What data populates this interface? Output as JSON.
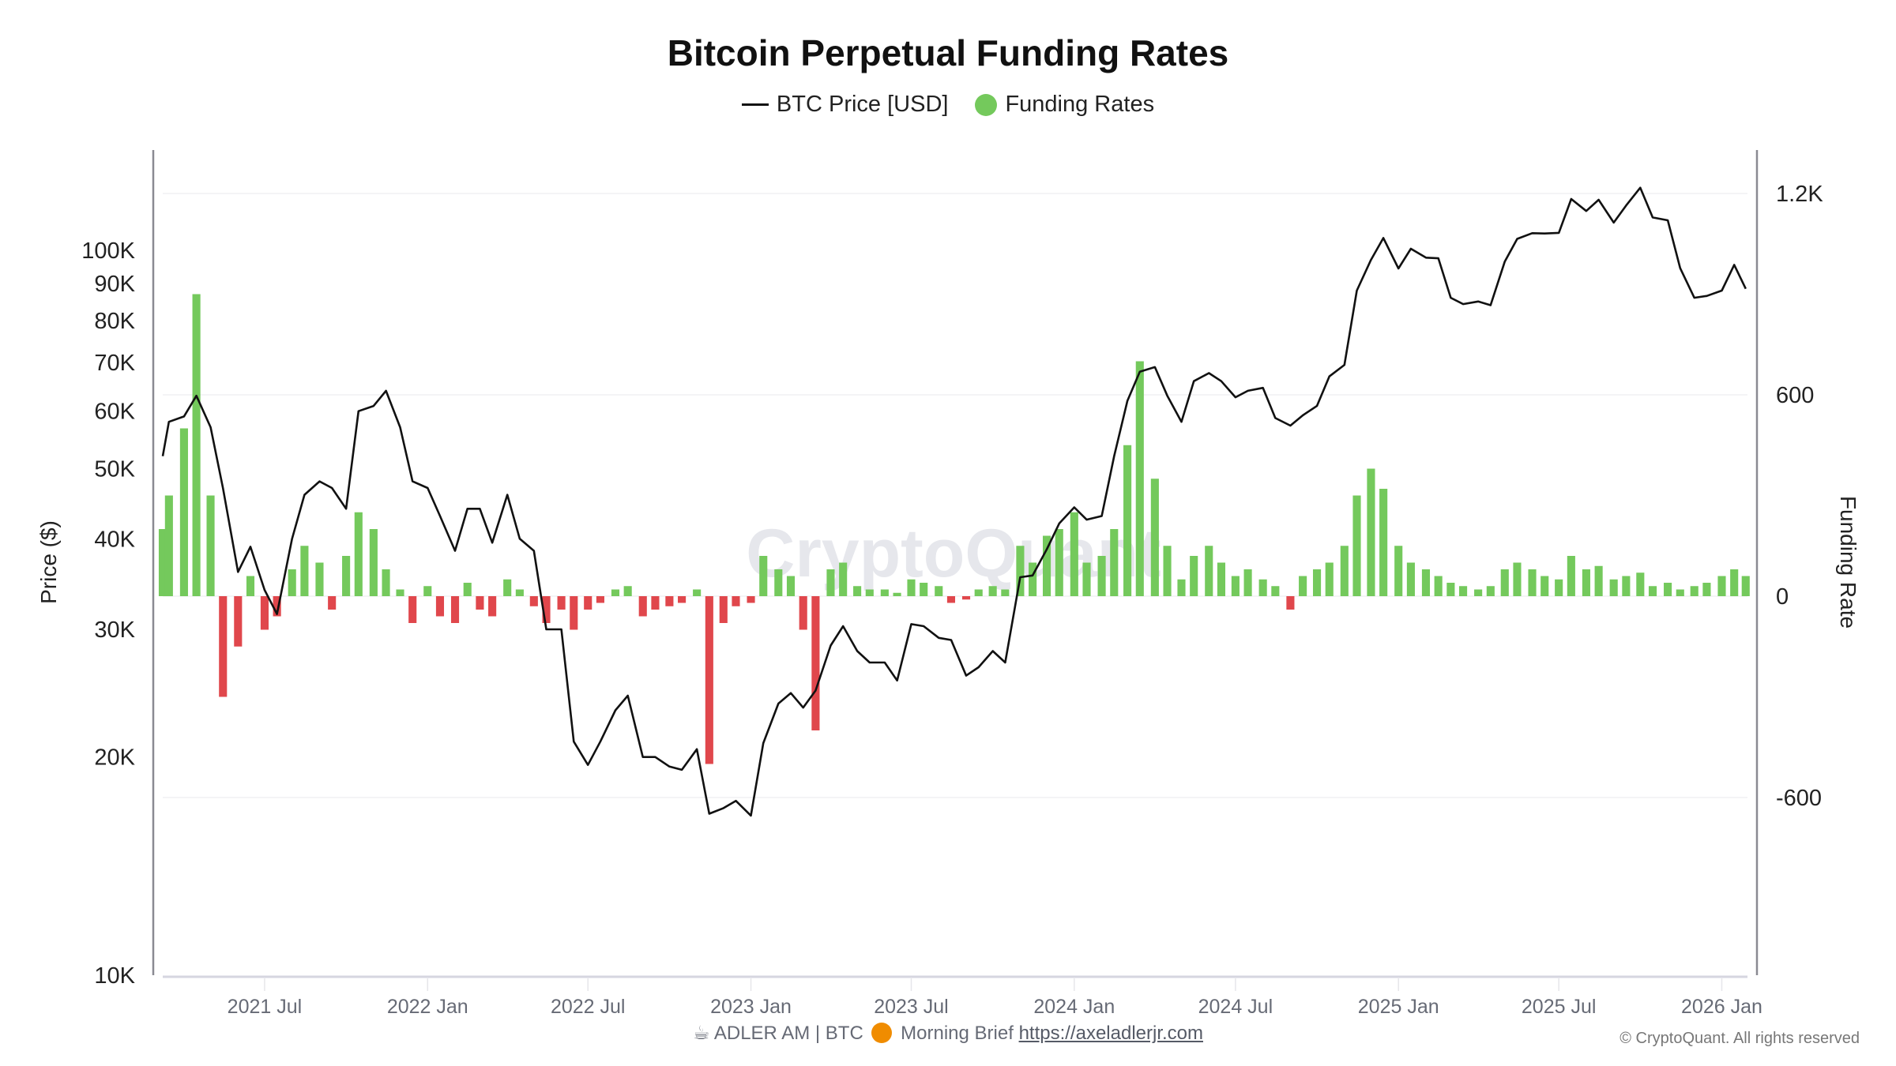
{
  "chart_data": {
    "type": "bar+line",
    "title": "Bitcoin Perpetual Funding Rates",
    "legend": {
      "placement": "top-center",
      "items": [
        {
          "name": "BTC Price [USD]",
          "marker": "line",
          "color": "#111111"
        },
        {
          "name": "Funding Rates",
          "marker": "dot",
          "color": "#74c95c"
        }
      ]
    },
    "y_left": {
      "label": "Price ($)",
      "scale": "log",
      "range": [
        10000,
        150000
      ],
      "ticks": [
        10000,
        20000,
        30000,
        40000,
        50000,
        60000,
        70000,
        80000,
        90000,
        100000
      ],
      "tick_labels": [
        "10K",
        "20K",
        "30K",
        "40K",
        "50K",
        "60K",
        "70K",
        "80K",
        "90K",
        "100K"
      ]
    },
    "y_right": {
      "label": "Funding Rate",
      "scale": "linear",
      "range": [
        -1180,
        1380
      ],
      "ticks": [
        -600,
        0,
        600,
        1200
      ],
      "tick_labels": [
        "-600",
        "0",
        "600",
        "1.2K"
      ],
      "grid": true
    },
    "x": {
      "range": [
        "2021-03-08",
        "2026-01-30"
      ],
      "ticks": [
        "2021-07-01",
        "2022-01-01",
        "2022-07-01",
        "2023-01-01",
        "2023-07-01",
        "2024-01-01",
        "2024-07-01",
        "2025-01-01",
        "2025-07-01",
        "2026-01-01"
      ],
      "tick_labels": [
        "2021 Jul",
        "2022 Jan",
        "2022 Jul",
        "2023 Jan",
        "2023 Jul",
        "2024 Jan",
        "2024 Jul",
        "2025 Jan",
        "2025 Jul",
        "2026 Jan"
      ]
    },
    "colors": {
      "price": "#111111",
      "funding_positive": "#74c95c",
      "funding_negative": "#e0474c"
    },
    "dates": [
      "2021-03-08",
      "2021-03-15",
      "2021-04-01",
      "2021-04-15",
      "2021-05-01",
      "2021-05-15",
      "2021-06-01",
      "2021-06-15",
      "2021-07-01",
      "2021-07-15",
      "2021-08-01",
      "2021-08-15",
      "2021-09-01",
      "2021-09-15",
      "2021-10-01",
      "2021-10-15",
      "2021-11-01",
      "2021-11-15",
      "2021-12-01",
      "2021-12-15",
      "2022-01-01",
      "2022-01-15",
      "2022-02-01",
      "2022-02-15",
      "2022-03-01",
      "2022-03-15",
      "2022-04-01",
      "2022-04-15",
      "2022-05-01",
      "2022-05-15",
      "2022-06-01",
      "2022-06-15",
      "2022-07-01",
      "2022-07-15",
      "2022-08-01",
      "2022-08-15",
      "2022-09-01",
      "2022-09-15",
      "2022-10-01",
      "2022-10-15",
      "2022-11-01",
      "2022-11-15",
      "2022-12-01",
      "2022-12-15",
      "2023-01-01",
      "2023-01-15",
      "2023-02-01",
      "2023-02-15",
      "2023-03-01",
      "2023-03-15",
      "2023-04-01",
      "2023-04-15",
      "2023-05-01",
      "2023-05-15",
      "2023-06-01",
      "2023-06-15",
      "2023-07-01",
      "2023-07-15",
      "2023-08-01",
      "2023-08-15",
      "2023-09-01",
      "2023-09-15",
      "2023-10-01",
      "2023-10-15",
      "2023-11-01",
      "2023-11-15",
      "2023-12-01",
      "2023-12-15",
      "2024-01-01",
      "2024-01-15",
      "2024-02-01",
      "2024-02-15",
      "2024-03-01",
      "2024-03-15",
      "2024-04-01",
      "2024-04-15",
      "2024-05-01",
      "2024-05-15",
      "2024-06-01",
      "2024-06-15",
      "2024-07-01",
      "2024-07-15",
      "2024-08-01",
      "2024-08-15",
      "2024-09-01",
      "2024-09-15",
      "2024-10-01",
      "2024-10-15",
      "2024-11-01",
      "2024-11-15",
      "2024-12-01",
      "2024-12-15",
      "2025-01-01",
      "2025-01-15",
      "2025-02-01",
      "2025-02-15",
      "2025-03-01",
      "2025-03-15",
      "2025-04-01",
      "2025-04-15",
      "2025-05-01",
      "2025-05-15",
      "2025-06-01",
      "2025-06-15",
      "2025-07-01",
      "2025-07-15",
      "2025-08-01",
      "2025-08-15",
      "2025-09-01",
      "2025-09-15",
      "2025-10-01",
      "2025-10-15",
      "2025-11-01",
      "2025-11-15",
      "2025-12-01",
      "2025-12-15",
      "2026-01-01",
      "2026-01-15",
      "2026-01-28"
    ],
    "series": [
      {
        "name": "BTC Price [USD]",
        "type": "line",
        "values": [
          52000,
          58000,
          59000,
          63000,
          57000,
          47000,
          36000,
          39000,
          34000,
          31500,
          40000,
          46000,
          48000,
          47000,
          44000,
          60000,
          61000,
          64000,
          57000,
          48000,
          47000,
          43000,
          38500,
          44000,
          44000,
          39500,
          46000,
          40000,
          38500,
          30000,
          30000,
          21000,
          19500,
          21000,
          23200,
          24300,
          20000,
          20000,
          19400,
          19200,
          20500,
          16700,
          17000,
          17400,
          16600,
          20900,
          23700,
          24500,
          23400,
          24700,
          28500,
          30300,
          28000,
          27000,
          27000,
          25500,
          30500,
          30300,
          29200,
          29000,
          25900,
          26600,
          28000,
          27000,
          35400,
          35600,
          38700,
          42000,
          44200,
          42500,
          43000,
          52000,
          62000,
          68000,
          69000,
          63000,
          58000,
          66000,
          67700,
          66000,
          62700,
          64000,
          64600,
          58700,
          57300,
          59200,
          61000,
          67000,
          69500,
          88000,
          97000,
          104000,
          94400,
          100500,
          97700,
          97500,
          86000,
          84300,
          85000,
          84000,
          96500,
          103700,
          105600,
          105500,
          105700,
          117700,
          113300,
          117400,
          109200,
          115300,
          122000,
          111000,
          110000,
          94500,
          86000,
          86500,
          88000,
          95500,
          88500
        ]
      },
      {
        "name": "Funding Rates",
        "type": "bar",
        "values": [
          200,
          300,
          500,
          900,
          300,
          -300,
          -150,
          60,
          -100,
          -60,
          80,
          150,
          100,
          -40,
          120,
          250,
          200,
          80,
          20,
          -80,
          30,
          -60,
          -80,
          40,
          -40,
          -60,
          50,
          20,
          -30,
          -80,
          -40,
          -100,
          -40,
          -20,
          20,
          30,
          -60,
          -40,
          -30,
          -20,
          20,
          -500,
          -80,
          -30,
          -20,
          120,
          80,
          60,
          -100,
          -400,
          80,
          100,
          30,
          20,
          20,
          10,
          50,
          40,
          30,
          -20,
          -10,
          20,
          30,
          20,
          150,
          100,
          180,
          200,
          250,
          100,
          120,
          200,
          450,
          700,
          350,
          150,
          50,
          120,
          150,
          100,
          60,
          80,
          50,
          30,
          -40,
          60,
          80,
          100,
          150,
          300,
          380,
          320,
          150,
          100,
          80,
          60,
          40,
          30,
          20,
          30,
          80,
          100,
          80,
          60,
          50,
          120,
          80,
          90,
          50,
          60,
          70,
          30,
          40,
          20,
          30,
          40,
          60,
          80,
          60
        ]
      }
    ]
  },
  "watermark": "CryptoQuant",
  "footer": {
    "prefix": "☕ ADLER AM | BTC",
    "brief": "Morning Brief",
    "link": "https://axeladlerjr.com"
  },
  "copyright": "© CryptoQuant. All rights reserved"
}
